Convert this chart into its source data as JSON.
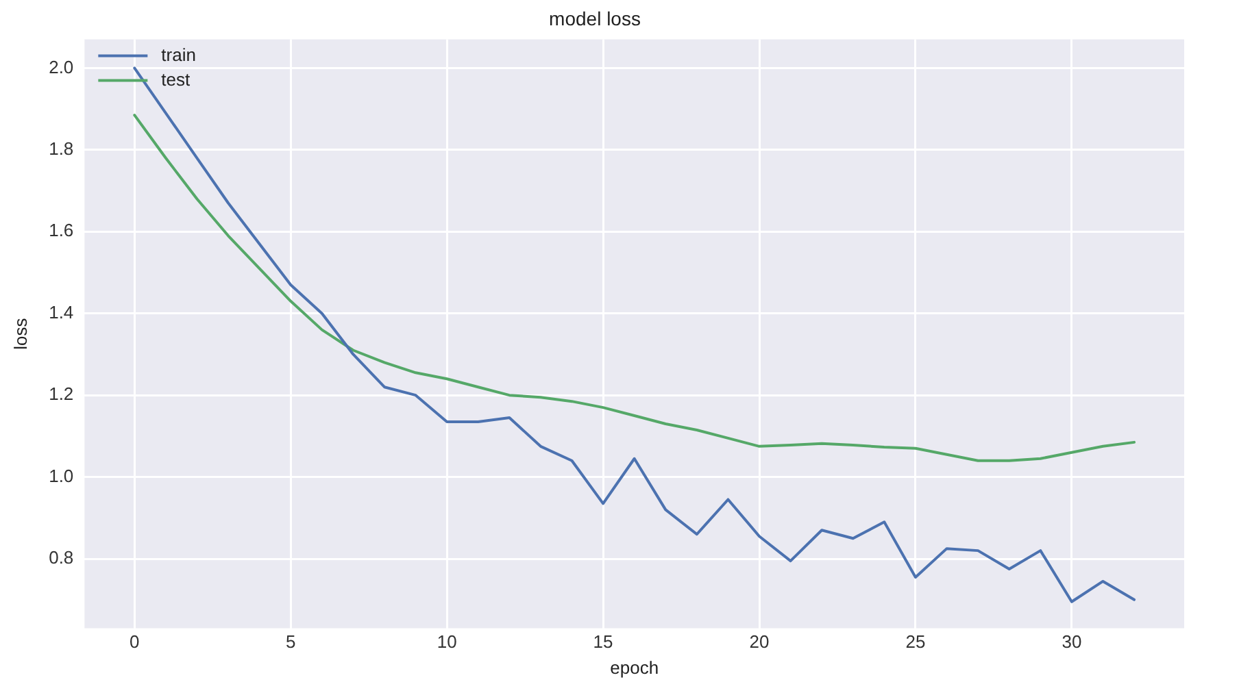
{
  "chart_data": {
    "type": "line",
    "title": "model loss",
    "xlabel": "epoch",
    "ylabel": "loss",
    "x": [
      0,
      1,
      2,
      3,
      4,
      5,
      6,
      7,
      8,
      9,
      10,
      11,
      12,
      13,
      14,
      15,
      16,
      17,
      18,
      19,
      20,
      21,
      22,
      23,
      24,
      25,
      26,
      27,
      28,
      29,
      30,
      31,
      32
    ],
    "series": [
      {
        "name": "train",
        "color": "#4c72b0",
        "values": [
          2.0,
          1.89,
          1.78,
          1.67,
          1.57,
          1.47,
          1.4,
          1.3,
          1.22,
          1.2,
          1.135,
          1.135,
          1.145,
          1.075,
          1.04,
          0.935,
          1.045,
          0.92,
          0.86,
          0.945,
          0.855,
          0.795,
          0.87,
          0.85,
          0.89,
          0.755,
          0.825,
          0.82,
          0.775,
          0.82,
          0.695,
          0.745,
          0.7
        ]
      },
      {
        "name": "test",
        "color": "#55a868",
        "values": [
          1.885,
          1.78,
          1.68,
          1.59,
          1.51,
          1.43,
          1.36,
          1.31,
          1.28,
          1.255,
          1.24,
          1.22,
          1.2,
          1.195,
          1.185,
          1.17,
          1.15,
          1.13,
          1.115,
          1.095,
          1.075,
          1.078,
          1.082,
          1.078,
          1.073,
          1.07,
          1.055,
          1.04,
          1.04,
          1.045,
          1.06,
          1.075,
          1.085
        ]
      }
    ],
    "xlim": [
      -1.6,
      33.6
    ],
    "xticks": [
      0,
      5,
      10,
      15,
      20,
      25,
      30
    ],
    "ylim": [
      0.63,
      2.07
    ],
    "yticks": [
      0.8,
      {
        "value": 1,
        "label": "1.0"
      },
      1.2,
      1.4,
      1.6,
      1.8,
      {
        "value": 2,
        "label": "2.0"
      }
    ],
    "grid": true,
    "legend": "top left",
    "marker": "none",
    "line_style": "solid"
  }
}
